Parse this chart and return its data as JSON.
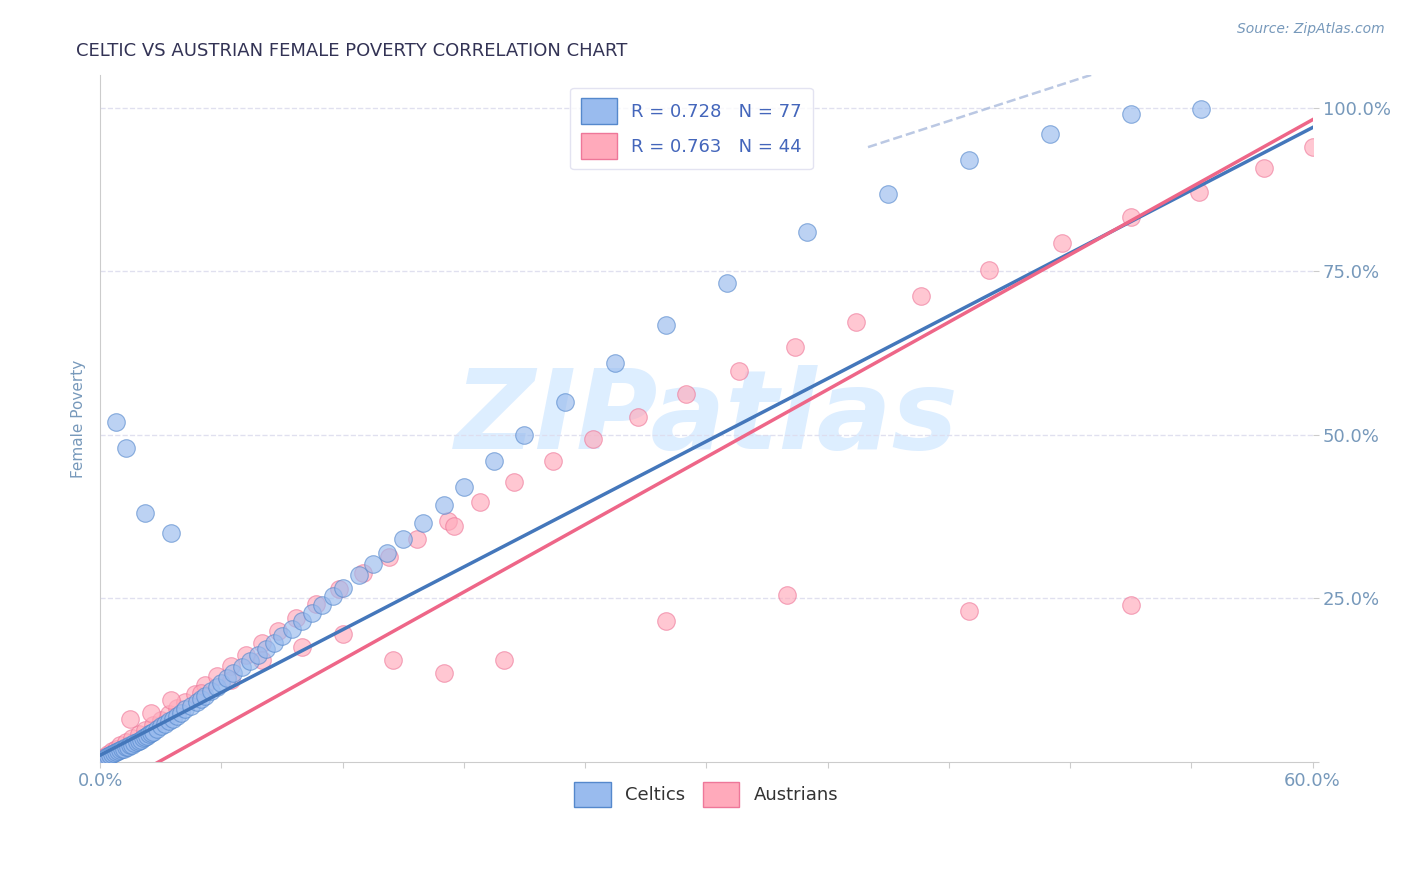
{
  "title": "CELTIC VS AUSTRIAN FEMALE POVERTY CORRELATION CHART",
  "source": "Source: ZipAtlas.com",
  "ylabel": "Female Poverty",
  "xlim": [
    0.0,
    0.6
  ],
  "ylim": [
    0.0,
    1.05
  ],
  "celtic_R": 0.728,
  "celtic_N": 77,
  "austrian_R": 0.763,
  "austrian_N": 44,
  "blue_fill": "#99BBEE",
  "blue_edge": "#5588CC",
  "blue_line": "#4477BB",
  "pink_fill": "#FFAABB",
  "pink_edge": "#EE7799",
  "pink_line": "#EE6688",
  "ref_line_color": "#AABBDD",
  "legend_text_color": "#4466BB",
  "title_color": "#333355",
  "axis_label_color": "#7799BB",
  "tick_color": "#7799BB",
  "grid_color": "#DDDDEE",
  "watermark_color": "#DDEEFF",
  "background_color": "#FFFFFF",
  "celtic_x": [
    0.002,
    0.003,
    0.004,
    0.005,
    0.006,
    0.007,
    0.008,
    0.009,
    0.01,
    0.011,
    0.012,
    0.013,
    0.014,
    0.015,
    0.016,
    0.017,
    0.018,
    0.019,
    0.02,
    0.021,
    0.022,
    0.023,
    0.024,
    0.025,
    0.026,
    0.028,
    0.03,
    0.032,
    0.034,
    0.036,
    0.038,
    0.04,
    0.042,
    0.045,
    0.048,
    0.05,
    0.052,
    0.055,
    0.058,
    0.06,
    0.063,
    0.066,
    0.07,
    0.074,
    0.078,
    0.082,
    0.086,
    0.09,
    0.095,
    0.1,
    0.105,
    0.11,
    0.115,
    0.12,
    0.128,
    0.135,
    0.142,
    0.15,
    0.16,
    0.17,
    0.18,
    0.195,
    0.21,
    0.23,
    0.255,
    0.28,
    0.31,
    0.35,
    0.39,
    0.43,
    0.47,
    0.51,
    0.545,
    0.035,
    0.022,
    0.013,
    0.008
  ],
  "celtic_y": [
    0.005,
    0.007,
    0.009,
    0.01,
    0.012,
    0.013,
    0.015,
    0.016,
    0.018,
    0.019,
    0.02,
    0.022,
    0.023,
    0.025,
    0.026,
    0.028,
    0.03,
    0.032,
    0.034,
    0.036,
    0.038,
    0.04,
    0.042,
    0.044,
    0.046,
    0.05,
    0.054,
    0.058,
    0.062,
    0.066,
    0.07,
    0.075,
    0.08,
    0.086,
    0.092,
    0.096,
    0.1,
    0.108,
    0.115,
    0.12,
    0.128,
    0.135,
    0.145,
    0.154,
    0.163,
    0.172,
    0.182,
    0.192,
    0.203,
    0.215,
    0.227,
    0.24,
    0.253,
    0.266,
    0.285,
    0.303,
    0.32,
    0.34,
    0.365,
    0.392,
    0.42,
    0.46,
    0.5,
    0.55,
    0.61,
    0.668,
    0.732,
    0.81,
    0.868,
    0.92,
    0.96,
    0.99,
    0.998,
    0.35,
    0.38,
    0.48,
    0.52
  ],
  "austrian_x": [
    0.002,
    0.004,
    0.006,
    0.008,
    0.01,
    0.013,
    0.016,
    0.019,
    0.022,
    0.026,
    0.03,
    0.034,
    0.038,
    0.042,
    0.047,
    0.052,
    0.058,
    0.065,
    0.072,
    0.08,
    0.088,
    0.097,
    0.107,
    0.118,
    0.13,
    0.143,
    0.157,
    0.172,
    0.188,
    0.205,
    0.224,
    0.244,
    0.266,
    0.29,
    0.316,
    0.344,
    0.374,
    0.406,
    0.44,
    0.476,
    0.51,
    0.544,
    0.576,
    0.6
  ],
  "austrian_y": [
    0.008,
    0.012,
    0.016,
    0.02,
    0.025,
    0.03,
    0.036,
    0.042,
    0.048,
    0.056,
    0.064,
    0.073,
    0.082,
    0.092,
    0.104,
    0.117,
    0.131,
    0.146,
    0.163,
    0.181,
    0.2,
    0.22,
    0.241,
    0.264,
    0.288,
    0.313,
    0.34,
    0.368,
    0.397,
    0.428,
    0.46,
    0.493,
    0.527,
    0.562,
    0.598,
    0.635,
    0.673,
    0.712,
    0.752,
    0.793,
    0.833,
    0.872,
    0.908,
    0.94
  ],
  "austrian_outlier_x": [
    0.175,
    0.28,
    0.34,
    0.43,
    0.51,
    0.015,
    0.025,
    0.035,
    0.05,
    0.065,
    0.08,
    0.1,
    0.12,
    0.145,
    0.17,
    0.2
  ],
  "austrian_outlier_y": [
    0.36,
    0.215,
    0.255,
    0.23,
    0.24,
    0.065,
    0.075,
    0.095,
    0.105,
    0.125,
    0.155,
    0.175,
    0.195,
    0.155,
    0.135,
    0.155
  ]
}
